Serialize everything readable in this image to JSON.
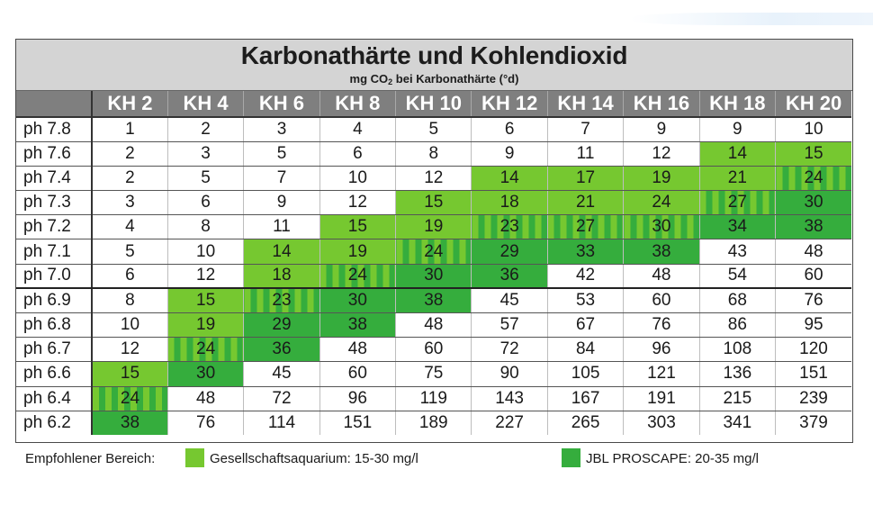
{
  "title": "Karbonathärte und Kohlendioxid",
  "subtitle_prefix": "mg CO",
  "subtitle_sub": "2",
  "subtitle_suffix": " bei Karbonathärte (°d)",
  "columns": [
    "KH 2",
    "KH 4",
    "KH 6",
    "KH 8",
    "KH 10",
    "KH 12",
    "KH 14",
    "KH 16",
    "KH 18",
    "KH 20"
  ],
  "rows": [
    {
      "label": "ph 7.8",
      "values": [
        "1",
        "2",
        "3",
        "4",
        "5",
        "6",
        "7",
        "9",
        "9",
        "10"
      ],
      "states": [
        "w",
        "w",
        "w",
        "w",
        "w",
        "w",
        "w",
        "w",
        "w",
        "w"
      ]
    },
    {
      "label": "ph 7.6",
      "values": [
        "2",
        "3",
        "5",
        "6",
        "8",
        "9",
        "11",
        "12",
        "14",
        "15"
      ],
      "states": [
        "w",
        "w",
        "w",
        "w",
        "w",
        "w",
        "w",
        "w",
        "l",
        "l"
      ]
    },
    {
      "label": "ph 7.4",
      "values": [
        "2",
        "5",
        "7",
        "10",
        "12",
        "14",
        "17",
        "19",
        "21",
        "24"
      ],
      "states": [
        "w",
        "w",
        "w",
        "w",
        "w",
        "l",
        "l",
        "l",
        "l",
        "s"
      ]
    },
    {
      "label": "ph 7.3",
      "values": [
        "3",
        "6",
        "9",
        "12",
        "15",
        "18",
        "21",
        "24",
        "27",
        "30"
      ],
      "states": [
        "w",
        "w",
        "w",
        "w",
        "l",
        "l",
        "l",
        "l",
        "s",
        "d"
      ]
    },
    {
      "label": "ph 7.2",
      "values": [
        "4",
        "8",
        "11",
        "15",
        "19",
        "23",
        "27",
        "30",
        "34",
        "38"
      ],
      "states": [
        "w",
        "w",
        "w",
        "l",
        "l",
        "s",
        "s",
        "s",
        "d",
        "d"
      ]
    },
    {
      "label": "ph 7.1",
      "values": [
        "5",
        "10",
        "14",
        "19",
        "24",
        "29",
        "33",
        "38",
        "43",
        "48"
      ],
      "states": [
        "w",
        "w",
        "l",
        "l",
        "s",
        "d",
        "d",
        "d",
        "w",
        "w"
      ]
    },
    {
      "label": "ph 7.0",
      "values": [
        "6",
        "12",
        "18",
        "24",
        "30",
        "36",
        "42",
        "48",
        "54",
        "60"
      ],
      "states": [
        "w",
        "w",
        "l",
        "s",
        "d",
        "d",
        "w",
        "w",
        "w",
        "w"
      ]
    },
    {
      "label": "ph 6.9",
      "values": [
        "8",
        "15",
        "23",
        "30",
        "38",
        "45",
        "53",
        "60",
        "68",
        "76"
      ],
      "states": [
        "w",
        "l",
        "s",
        "d",
        "d",
        "w",
        "w",
        "w",
        "w",
        "w"
      ]
    },
    {
      "label": "ph 6.8",
      "values": [
        "10",
        "19",
        "29",
        "38",
        "48",
        "57",
        "67",
        "76",
        "86",
        "95"
      ],
      "states": [
        "w",
        "l",
        "d",
        "d",
        "w",
        "w",
        "w",
        "w",
        "w",
        "w"
      ]
    },
    {
      "label": "ph 6.7",
      "values": [
        "12",
        "24",
        "36",
        "48",
        "60",
        "72",
        "84",
        "96",
        "108",
        "120"
      ],
      "states": [
        "w",
        "s",
        "d",
        "w",
        "w",
        "w",
        "w",
        "w",
        "w",
        "w"
      ]
    },
    {
      "label": "ph 6.6",
      "values": [
        "15",
        "30",
        "45",
        "60",
        "75",
        "90",
        "105",
        "121",
        "136",
        "151"
      ],
      "states": [
        "l",
        "d",
        "w",
        "w",
        "w",
        "w",
        "w",
        "w",
        "w",
        "w"
      ]
    },
    {
      "label": "ph 6.4",
      "values": [
        "24",
        "48",
        "72",
        "96",
        "119",
        "143",
        "167",
        "191",
        "215",
        "239"
      ],
      "states": [
        "s",
        "w",
        "w",
        "w",
        "w",
        "w",
        "w",
        "w",
        "w",
        "w"
      ]
    },
    {
      "label": "ph 6.2",
      "values": [
        "38",
        "76",
        "114",
        "151",
        "189",
        "227",
        "265",
        "303",
        "341",
        "379"
      ],
      "states": [
        "d",
        "w",
        "w",
        "w",
        "w",
        "w",
        "w",
        "w",
        "w",
        "w"
      ]
    }
  ],
  "legend": {
    "label": "Empfohlener Bereich:",
    "items": [
      {
        "text": "Gesellschaftsaquarium: 15-30 mg/l",
        "color": "#76c830"
      },
      {
        "text": "JBL PROSCAPE: 20-35 mg/l",
        "color": "#35ad3d"
      }
    ]
  },
  "colors": {
    "title_band": "#d4d4d4",
    "header": "#7f7f7f",
    "light_green": "#76c830",
    "dark_green": "#35ad3d"
  },
  "chart_data": {
    "type": "table",
    "title": "Karbonathärte und Kohlendioxid",
    "subtitle": "mg CO2 bei Karbonathärte (°d)",
    "columns": [
      "KH 2",
      "KH 4",
      "KH 6",
      "KH 8",
      "KH 10",
      "KH 12",
      "KH 14",
      "KH 16",
      "KH 18",
      "KH 20"
    ],
    "row_labels": [
      "ph 7.8",
      "ph 7.6",
      "ph 7.4",
      "ph 7.3",
      "ph 7.2",
      "ph 7.1",
      "ph 7.0",
      "ph 6.9",
      "ph 6.8",
      "ph 6.7",
      "ph 6.6",
      "ph 6.4",
      "ph 6.2"
    ],
    "values": [
      [
        1,
        2,
        3,
        4,
        5,
        6,
        7,
        9,
        9,
        10
      ],
      [
        2,
        3,
        5,
        6,
        8,
        9,
        11,
        12,
        14,
        15
      ],
      [
        2,
        5,
        7,
        10,
        12,
        14,
        17,
        19,
        21,
        24
      ],
      [
        3,
        6,
        9,
        12,
        15,
        18,
        21,
        24,
        27,
        30
      ],
      [
        4,
        8,
        11,
        15,
        19,
        23,
        27,
        30,
        34,
        38
      ],
      [
        5,
        10,
        14,
        19,
        24,
        29,
        33,
        38,
        43,
        48
      ],
      [
        6,
        12,
        18,
        24,
        30,
        36,
        42,
        48,
        54,
        60
      ],
      [
        8,
        15,
        23,
        30,
        38,
        45,
        53,
        60,
        68,
        76
      ],
      [
        10,
        19,
        29,
        38,
        48,
        57,
        67,
        76,
        86,
        95
      ],
      [
        12,
        24,
        36,
        48,
        60,
        72,
        84,
        96,
        108,
        120
      ],
      [
        15,
        30,
        45,
        60,
        75,
        90,
        105,
        121,
        136,
        151
      ],
      [
        24,
        48,
        72,
        96,
        119,
        143,
        167,
        191,
        215,
        239
      ],
      [
        38,
        76,
        114,
        151,
        189,
        227,
        265,
        303,
        341,
        379
      ]
    ],
    "highlight_legend": [
      {
        "label": "Gesellschaftsaquarium: 15-30 mg/l",
        "color": "#76c830"
      },
      {
        "label": "JBL PROSCAPE: 20-35 mg/l",
        "color": "#35ad3d"
      },
      {
        "label": "overlap (striped)",
        "pattern": "stripes"
      }
    ]
  }
}
